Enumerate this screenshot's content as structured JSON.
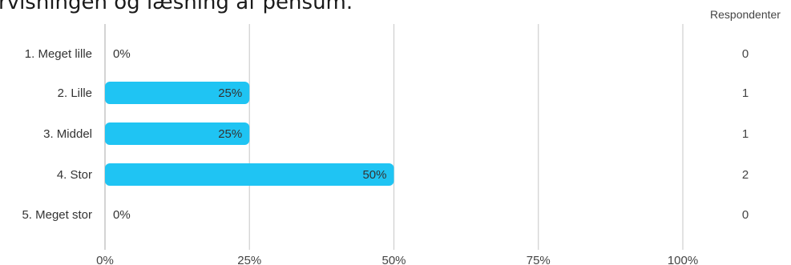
{
  "title": "rvisningen og læsning af pensum.",
  "chart_data": {
    "type": "bar",
    "orientation": "horizontal",
    "categories": [
      "1. Meget lille",
      "2. Lille",
      "3. Middel",
      "4. Stor",
      "5. Meget stor"
    ],
    "values": [
      0,
      25,
      25,
      50,
      0
    ],
    "value_labels": [
      "0%",
      "25%",
      "25%",
      "50%",
      "0%"
    ],
    "xlim": [
      0,
      100
    ],
    "x_ticks": [
      0,
      25,
      50,
      75,
      100
    ],
    "x_tick_labels": [
      "0%",
      "25%",
      "50%",
      "75%",
      "100%"
    ],
    "grid": "vertical",
    "bar_color": "#1fc4f3",
    "respondents_header": "Respondenter",
    "respondents": [
      "0",
      "1",
      "1",
      "2",
      "0"
    ]
  }
}
